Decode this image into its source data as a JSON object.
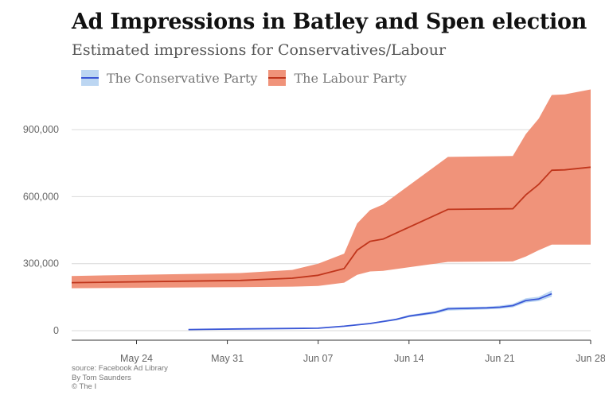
{
  "title": "Ad Impressions in Batley and Spen election",
  "subtitle": "Estimated impressions for Conservatives/Labour",
  "source": {
    "line1": "source: Facebook Ad Library",
    "line2": "By Tom Saunders",
    "line3": "© The I"
  },
  "legend": [
    {
      "label": "The Conservative Party",
      "line_color": "#3a57d6",
      "band_color": "#bcd6f2"
    },
    {
      "label": "The Labour Party",
      "line_color": "#c0361c",
      "band_color": "#f0937a"
    }
  ],
  "chart_data": {
    "type": "area",
    "title": "Ad Impressions in Batley and Spen election",
    "subtitle": "Estimated impressions for Conservatives/Labour",
    "xlabel": "",
    "ylabel": "",
    "x_range": [
      "2021-05-19",
      "2021-06-28"
    ],
    "ylim": [
      0,
      1000000
    ],
    "y_ticks": [
      0,
      300000,
      600000,
      900000
    ],
    "y_tick_labels": [
      "0",
      "300,000",
      "600,000",
      "900,000"
    ],
    "x_ticks": [
      "2021-05-24",
      "2021-05-31",
      "2021-06-07",
      "2021-06-14",
      "2021-06-21",
      "2021-06-28"
    ],
    "x_tick_labels": [
      "May 24",
      "May 31",
      "Jun 07",
      "Jun 14",
      "Jun 21",
      "Jun 28"
    ],
    "grid": "horizontal",
    "legend_position": "top-left",
    "series": [
      {
        "name": "The Conservative Party",
        "color": "#3a57d6",
        "band_color": "#bcd6f2",
        "points": [
          {
            "date": "2021-05-28",
            "mid": 5000,
            "low": 4000,
            "high": 6000
          },
          {
            "date": "2021-06-01",
            "mid": 8000,
            "low": 7000,
            "high": 9000
          },
          {
            "date": "2021-06-07",
            "mid": 11000,
            "low": 10000,
            "high": 12000
          },
          {
            "date": "2021-06-09",
            "mid": 20000,
            "low": 18000,
            "high": 22000
          },
          {
            "date": "2021-06-11",
            "mid": 32000,
            "low": 29000,
            "high": 35000
          },
          {
            "date": "2021-06-13",
            "mid": 50000,
            "low": 46000,
            "high": 54000
          },
          {
            "date": "2021-06-14",
            "mid": 65000,
            "low": 60000,
            "high": 70000
          },
          {
            "date": "2021-06-16",
            "mid": 82000,
            "low": 75000,
            "high": 88000
          },
          {
            "date": "2021-06-17",
            "mid": 98000,
            "low": 90000,
            "high": 105000
          },
          {
            "date": "2021-06-20",
            "mid": 102000,
            "low": 95000,
            "high": 108000
          },
          {
            "date": "2021-06-21",
            "mid": 105000,
            "low": 98000,
            "high": 112000
          },
          {
            "date": "2021-06-22",
            "mid": 112000,
            "low": 104000,
            "high": 120000
          },
          {
            "date": "2021-06-23",
            "mid": 135000,
            "low": 126000,
            "high": 145000
          },
          {
            "date": "2021-06-24",
            "mid": 142000,
            "low": 132000,
            "high": 152000
          },
          {
            "date": "2021-06-25",
            "mid": 165000,
            "low": 152000,
            "high": 180000
          }
        ]
      },
      {
        "name": "The Labour Party",
        "color": "#c0361c",
        "band_color": "#f0937a",
        "points": [
          {
            "date": "2021-05-19",
            "mid": 215000,
            "low": 190000,
            "high": 245000
          },
          {
            "date": "2021-06-01",
            "mid": 225000,
            "low": 195000,
            "high": 258000
          },
          {
            "date": "2021-06-05",
            "mid": 235000,
            "low": 197000,
            "high": 272000
          },
          {
            "date": "2021-06-07",
            "mid": 248000,
            "low": 200000,
            "high": 300000
          },
          {
            "date": "2021-06-09",
            "mid": 278000,
            "low": 215000,
            "high": 345000
          },
          {
            "date": "2021-06-10",
            "mid": 360000,
            "low": 250000,
            "high": 480000
          },
          {
            "date": "2021-06-11",
            "mid": 400000,
            "low": 265000,
            "high": 540000
          },
          {
            "date": "2021-06-12",
            "mid": 410000,
            "low": 268000,
            "high": 565000
          },
          {
            "date": "2021-06-17",
            "mid": 543000,
            "low": 308000,
            "high": 778000
          },
          {
            "date": "2021-06-22",
            "mid": 546000,
            "low": 310000,
            "high": 782000
          },
          {
            "date": "2021-06-23",
            "mid": 608000,
            "low": 332000,
            "high": 880000
          },
          {
            "date": "2021-06-24",
            "mid": 655000,
            "low": 360000,
            "high": 950000
          },
          {
            "date": "2021-06-25",
            "mid": 718000,
            "low": 385000,
            "high": 1055000
          },
          {
            "date": "2021-06-26",
            "mid": 720000,
            "low": 385000,
            "high": 1058000
          },
          {
            "date": "2021-06-28",
            "mid": 732000,
            "low": 385000,
            "high": 1080000
          }
        ]
      }
    ]
  }
}
